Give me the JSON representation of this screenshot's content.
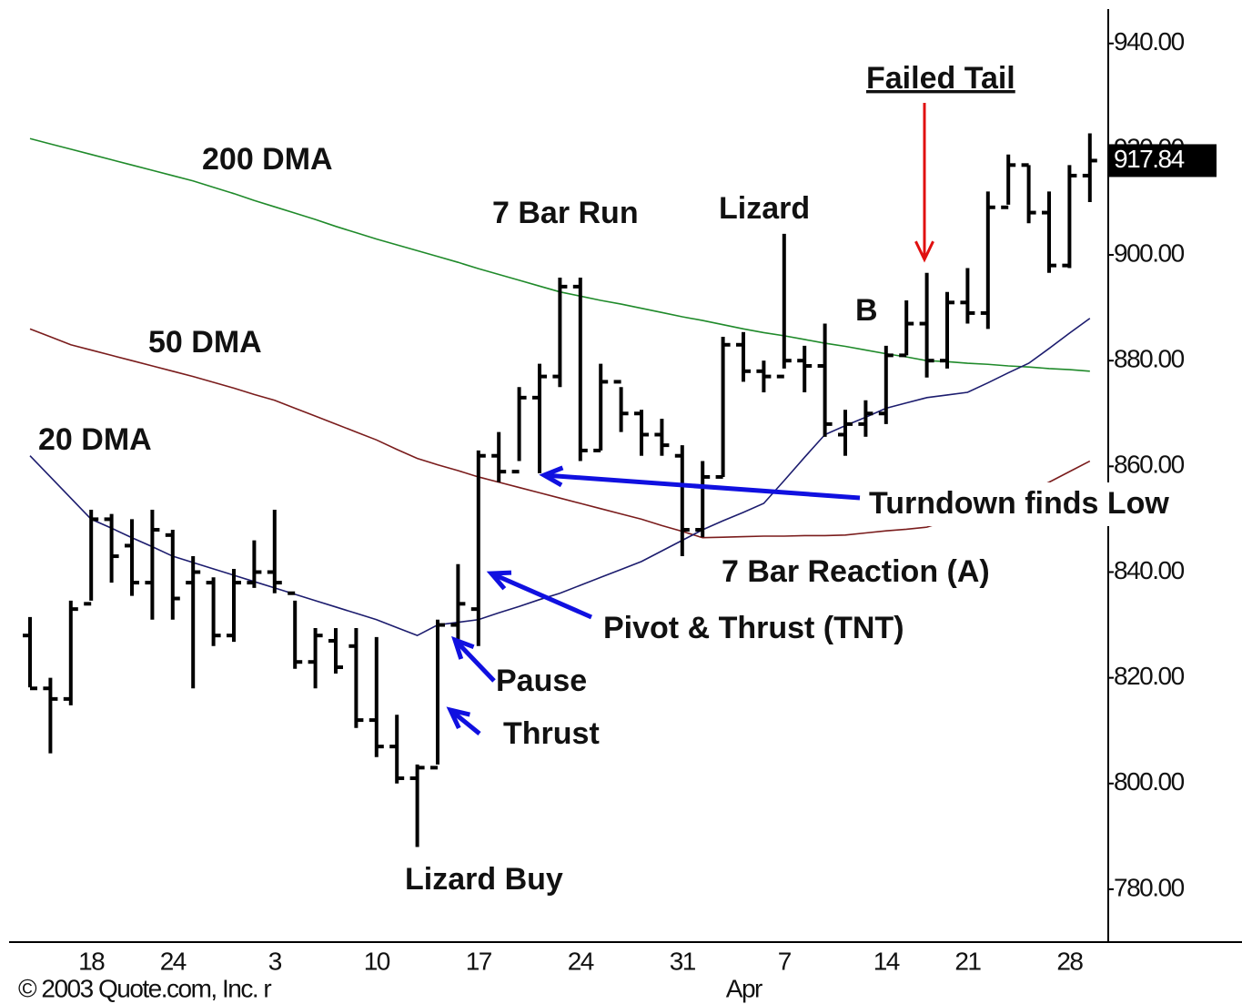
{
  "chart_data": {
    "type": "ohlc",
    "categories": [
      null,
      null,
      null,
      "18",
      null,
      null,
      null,
      "24",
      null,
      null,
      null,
      null,
      "3",
      null,
      null,
      null,
      null,
      "10",
      null,
      null,
      null,
      null,
      "17",
      null,
      null,
      null,
      null,
      "24",
      null,
      null,
      null,
      null,
      "31",
      null,
      null,
      null,
      null,
      "7",
      null,
      null,
      null,
      null,
      "14",
      null,
      null,
      null,
      "21",
      null,
      null,
      null,
      null,
      "28",
      null
    ],
    "month_label": "Apr",
    "ohlc": {
      "color": "#000000",
      "open": [
        828,
        818,
        816,
        834,
        850,
        845,
        838,
        847,
        838,
        838,
        828,
        838,
        840,
        836,
        823,
        827,
        826,
        812,
        807,
        801,
        803,
        830,
        833,
        862,
        859,
        873,
        877,
        894,
        863,
        876,
        870,
        866,
        862,
        848,
        858,
        883,
        878,
        877,
        880,
        879,
        866,
        868,
        870,
        881,
        887,
        880,
        891,
        889,
        909,
        917,
        908,
        898,
        915
      ],
      "high": [
        831.5,
        820,
        834.6,
        851.8,
        851,
        850,
        851.8,
        848,
        843,
        839,
        840.6,
        846,
        851.8,
        834.6,
        829.4,
        829.4,
        829.4,
        827.7,
        813,
        803.6,
        831,
        841.5,
        863,
        866.5,
        875,
        879.4,
        895.7,
        895.7,
        879.4,
        875,
        870.7,
        869,
        864,
        861,
        884.5,
        885.4,
        880,
        904,
        882.8,
        887,
        870.7,
        872.5,
        882.8,
        891.4,
        896.6,
        893,
        897.5,
        912,
        919,
        917,
        912,
        917,
        923
      ],
      "low": [
        818.2,
        805.7,
        814.8,
        834.6,
        838,
        835.5,
        831,
        831,
        818,
        826,
        826.8,
        837,
        836,
        821.7,
        818,
        820.8,
        810.5,
        805,
        800,
        788,
        803.6,
        826.8,
        826,
        857,
        861,
        858.7,
        875,
        861,
        863,
        866.5,
        862,
        862,
        843,
        846.6,
        858,
        876,
        874,
        878.5,
        874,
        865.6,
        862,
        865.6,
        868,
        881,
        876.8,
        878.5,
        887,
        886,
        909.5,
        906,
        896.6,
        897.5,
        910
      ],
      "close": [
        818,
        816,
        833,
        850,
        843,
        838,
        848,
        835,
        840,
        828,
        838,
        840,
        838,
        823,
        828,
        822,
        812,
        807,
        801,
        803,
        830,
        834,
        862,
        859,
        873,
        877,
        894,
        863,
        876,
        870,
        866,
        864,
        848,
        858,
        883,
        878,
        877,
        880,
        879,
        868,
        868,
        870,
        881,
        887,
        880,
        891,
        889,
        909,
        917,
        908,
        898,
        915,
        917.84
      ]
    },
    "series": [
      {
        "name": "200 DMA",
        "color": "#1f8a2a",
        "values": [
          922,
          921,
          920,
          919,
          918,
          917,
          916,
          915,
          914,
          912.8,
          911.6,
          910.3,
          909.1,
          907.9,
          906.7,
          905.4,
          904.2,
          903,
          901.9,
          900.8,
          899.7,
          898.6,
          897.4,
          896.3,
          895.2,
          894.1,
          893,
          892.2,
          891.4,
          890.7,
          889.9,
          889.1,
          888.3,
          887.6,
          886.8,
          886,
          885.3,
          884.7,
          884,
          883.3,
          882.7,
          882,
          881.3,
          880.7,
          880,
          879.8,
          879.5,
          879.3,
          879,
          878.8,
          878.5,
          878.3,
          878
        ]
      },
      {
        "name": "50 DMA",
        "color": "#7a1c1c",
        "values": [
          886,
          884.5,
          883,
          882,
          881,
          880,
          879,
          878,
          877,
          875.9,
          874.8,
          873.6,
          872.5,
          871,
          869.5,
          868,
          866.5,
          865,
          863.2,
          861.5,
          860.3,
          859.2,
          858,
          857,
          856,
          855,
          854,
          853,
          852,
          851,
          850,
          848.8,
          847.7,
          846.5,
          846.6,
          846.7,
          846.8,
          846.8,
          846.9,
          846.9,
          847,
          847.4,
          847.8,
          848.1,
          848.5,
          849.7,
          850.8,
          852,
          853.7,
          855.3,
          857,
          859,
          861
        ]
      },
      {
        "name": "20 DMA",
        "color": "#1c1c6e",
        "values": [
          862,
          858,
          854,
          850,
          848.3,
          846.5,
          844.8,
          843,
          841.8,
          840.6,
          839.4,
          838.2,
          837,
          835.8,
          834.6,
          833.4,
          832.2,
          831,
          829.5,
          828,
          830,
          830.5,
          831,
          832.3,
          833.5,
          834.8,
          836,
          837.5,
          839,
          840.5,
          842,
          844,
          846,
          848,
          849.7,
          851.3,
          853,
          857.3,
          861.7,
          866,
          867.7,
          869.3,
          871,
          872,
          873,
          873.5,
          874,
          875.8,
          877.7,
          879.5,
          882.3,
          885.2,
          888
        ]
      }
    ],
    "last_price": 917.84,
    "ylim": [
      770,
      946.5
    ],
    "yticks": [
      {
        "value": 780,
        "label": "780.00"
      },
      {
        "value": 800,
        "label": "800.00"
      },
      {
        "value": 820,
        "label": "820.00"
      },
      {
        "value": 840,
        "label": "840.00"
      },
      {
        "value": 860,
        "label": "860.00"
      },
      {
        "value": 880,
        "label": "880.00"
      },
      {
        "value": 900,
        "label": "900.00"
      },
      {
        "value": 920,
        "label": "920.00"
      },
      {
        "value": 940,
        "label": "940.00"
      }
    ],
    "grid": false,
    "annotations": [
      "7 Bar Run",
      "Lizard",
      "Failed Tail",
      "B",
      "Turndown finds Low",
      "7 Bar Reaction (A)",
      "Pivot & Thrust (TNT)",
      "Pause",
      "Thrust",
      "Lizard Buy"
    ],
    "copyright": "© 2003 Quote.com, Inc. r"
  }
}
